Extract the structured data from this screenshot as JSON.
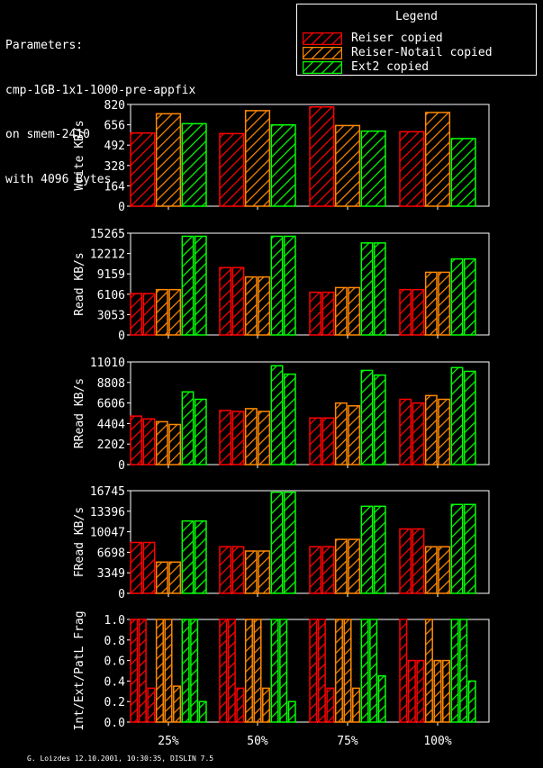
{
  "params_lines": [
    "Parameters:",
    "cmp-1GB-1x1-1000-pre-appfix",
    "on smem-2410",
    "with 4096 Bytes"
  ],
  "legend": {
    "title": "Legend",
    "items": [
      {
        "label": "Reiser copied",
        "color": "#ff0000"
      },
      {
        "label": "Reiser-Notail copied",
        "color": "#ff8800"
      },
      {
        "label": "Ext2 copied",
        "color": "#00ff00"
      }
    ]
  },
  "footer": "G. Loizdes 12.10.2001, 10:30:35, DISLIN 7.5",
  "chart_data": [
    {
      "type": "bar",
      "ylabel": "Write KB/s",
      "yticks": [
        0,
        164,
        328,
        492,
        656,
        820
      ],
      "ylim": [
        0,
        820
      ],
      "categories": [
        "25%",
        "50%",
        "75%",
        "100%"
      ],
      "series": [
        {
          "name": "Reiser copied",
          "values": [
            [
              590
            ],
            [
              585
            ],
            [
              800
            ],
            [
              600
            ]
          ]
        },
        {
          "name": "Reiser-Notail copied",
          "values": [
            [
              745
            ],
            [
              770
            ],
            [
              650
            ],
            [
              755
            ]
          ]
        },
        {
          "name": "Ext2 copied",
          "values": [
            [
              665
            ],
            [
              655
            ],
            [
              605
            ],
            [
              545
            ]
          ]
        }
      ]
    },
    {
      "type": "bar",
      "ylabel": "Read KB/s",
      "yticks": [
        0,
        3053,
        6106,
        9159,
        12212,
        15265
      ],
      "ylim": [
        0,
        15265
      ],
      "categories": [
        "25%",
        "50%",
        "75%",
        "100%"
      ],
      "series": [
        {
          "name": "Reiser copied",
          "values": [
            [
              6200,
              6200
            ],
            [
              10100,
              10100
            ],
            [
              6400,
              6400
            ],
            [
              6800,
              6800
            ]
          ]
        },
        {
          "name": "Reiser-Notail copied",
          "values": [
            [
              6800,
              6800
            ],
            [
              8700,
              8700
            ],
            [
              7100,
              7100
            ],
            [
              9400,
              9400
            ]
          ]
        },
        {
          "name": "Ext2 copied",
          "values": [
            [
              14800,
              14800
            ],
            [
              14800,
              14800
            ],
            [
              13800,
              13800
            ],
            [
              11400,
              11400
            ]
          ]
        }
      ]
    },
    {
      "type": "bar",
      "ylabel": "RRead KB/s",
      "yticks": [
        0,
        2202,
        4404,
        6606,
        8808,
        11010
      ],
      "ylim": [
        0,
        11010
      ],
      "categories": [
        "25%",
        "50%",
        "75%",
        "100%"
      ],
      "series": [
        {
          "name": "Reiser copied",
          "values": [
            [
              5200,
              4900
            ],
            [
              5800,
              5700
            ],
            [
              5000,
              5000
            ],
            [
              7000,
              6600
            ]
          ]
        },
        {
          "name": "Reiser-Notail copied",
          "values": [
            [
              4600,
              4300
            ],
            [
              6000,
              5700
            ],
            [
              6600,
              6300
            ],
            [
              7400,
              7000
            ]
          ]
        },
        {
          "name": "Ext2 copied",
          "values": [
            [
              7800,
              7000
            ],
            [
              10600,
              9700
            ],
            [
              10100,
              9600
            ],
            [
              10400,
              10000
            ]
          ]
        }
      ]
    },
    {
      "type": "bar",
      "ylabel": "FRead KB/s",
      "yticks": [
        0,
        3349,
        6698,
        10047,
        13396,
        16745
      ],
      "ylim": [
        0,
        16745
      ],
      "categories": [
        "25%",
        "50%",
        "75%",
        "100%"
      ],
      "series": [
        {
          "name": "Reiser copied",
          "values": [
            [
              8300,
              8300
            ],
            [
              7600,
              7600
            ],
            [
              7600,
              7600
            ],
            [
              10500,
              10500
            ]
          ]
        },
        {
          "name": "Reiser-Notail copied",
          "values": [
            [
              5100,
              5100
            ],
            [
              6900,
              6900
            ],
            [
              8800,
              8800
            ],
            [
              7600,
              7600
            ]
          ]
        },
        {
          "name": "Ext2 copied",
          "values": [
            [
              11800,
              11800
            ],
            [
              16500,
              16500
            ],
            [
              14200,
              14200
            ],
            [
              14500,
              14500
            ]
          ]
        }
      ]
    },
    {
      "type": "bar",
      "ylabel": "Int/Ext/PatL Frag",
      "yticks": [
        "0.0",
        "0.2",
        "0.4",
        "0.6",
        "0.8",
        "1.0"
      ],
      "ylim": [
        0,
        1.0
      ],
      "categories": [
        "25%",
        "50%",
        "75%",
        "100%"
      ],
      "series": [
        {
          "name": "Reiser copied",
          "values": [
            [
              1.0,
              1.0,
              0.33
            ],
            [
              1.0,
              1.0,
              0.33
            ],
            [
              1.0,
              1.0,
              0.33
            ],
            [
              1.0,
              0.6,
              0.6
            ]
          ]
        },
        {
          "name": "Reiser-Notail copied",
          "values": [
            [
              1.0,
              1.0,
              0.35
            ],
            [
              1.0,
              1.0,
              0.33
            ],
            [
              1.0,
              1.0,
              0.33
            ],
            [
              1.0,
              0.6,
              0.6
            ]
          ]
        },
        {
          "name": "Ext2 copied",
          "values": [
            [
              1.0,
              1.0,
              0.2
            ],
            [
              1.0,
              1.0,
              0.2
            ],
            [
              1.0,
              1.0,
              0.45
            ],
            [
              1.0,
              1.0,
              0.4
            ]
          ]
        }
      ]
    }
  ]
}
